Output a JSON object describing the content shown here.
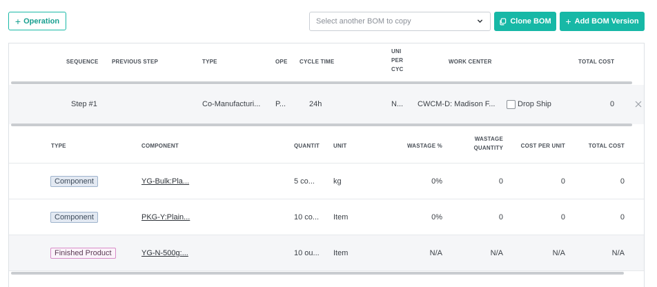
{
  "toolbar": {
    "operation_label": "Operation",
    "bom_select_placeholder": "Select another BOM to copy",
    "clone_label": "Clone BOM",
    "add_version_label": "Add BOM Version"
  },
  "operations_table": {
    "headers": {
      "sequence": "SEQUENCE",
      "previous_step": "PREVIOUS STEP",
      "type": "TYPE",
      "ope": "OPE",
      "cycle_time": "CYCLE TIME",
      "unit_per_cyc_1": "UNI",
      "unit_per_cyc_2": "PER",
      "unit_per_cyc_3": "CYC",
      "work_center": "WORK CENTER",
      "total_cost": "TOTAL COST"
    },
    "row": {
      "sequence": "Step #1",
      "type": "Co-Manufacturi...",
      "ope": "P...",
      "cycle_time": "24h",
      "unit": "N...",
      "work_center": "CWCM-D: Madison F...",
      "drop_ship_label": "Drop Ship",
      "drop_ship_checked": false,
      "total_cost": "0"
    }
  },
  "components_table": {
    "headers": {
      "type": "TYPE",
      "component": "COMPONENT",
      "quantity": "QUANTIT",
      "unit": "UNIT",
      "wastage_pct": "WASTAGE %",
      "wastage_qty_1": "WASTAGE",
      "wastage_qty_2": "QUANTITY",
      "cost_per_unit": "COST PER UNIT",
      "total_cost": "TOTAL COST"
    },
    "rows": [
      {
        "type": "Component",
        "component": "YG-Bulk:Pla...",
        "quantity": "5 co...",
        "unit": "kg",
        "wastage_pct": "0%",
        "wastage_qty": "0",
        "cost_per_unit": "0",
        "total_cost": "0"
      },
      {
        "type": "Component",
        "component": "PKG-Y:Plain...",
        "quantity": "10 co...",
        "unit": "Item",
        "wastage_pct": "0%",
        "wastage_qty": "0",
        "cost_per_unit": "0",
        "total_cost": "0"
      },
      {
        "type": "Finished Product",
        "component": "YG-N-500g:...",
        "quantity": "10 ou...",
        "unit": "Item",
        "wastage_pct": "N/A",
        "wastage_qty": "N/A",
        "cost_per_unit": "N/A",
        "total_cost": "N/A"
      }
    ]
  },
  "colors": {
    "accent": "#17b8a6",
    "component_tag_bg": "#e3e9f2",
    "finished_tag_border": "#d78bc7"
  },
  "icons": {
    "operation": "plus-icon",
    "select": "chevron-down-icon",
    "clone": "copy-icon",
    "add_version": "plus-icon",
    "row_remove": "close-icon"
  }
}
